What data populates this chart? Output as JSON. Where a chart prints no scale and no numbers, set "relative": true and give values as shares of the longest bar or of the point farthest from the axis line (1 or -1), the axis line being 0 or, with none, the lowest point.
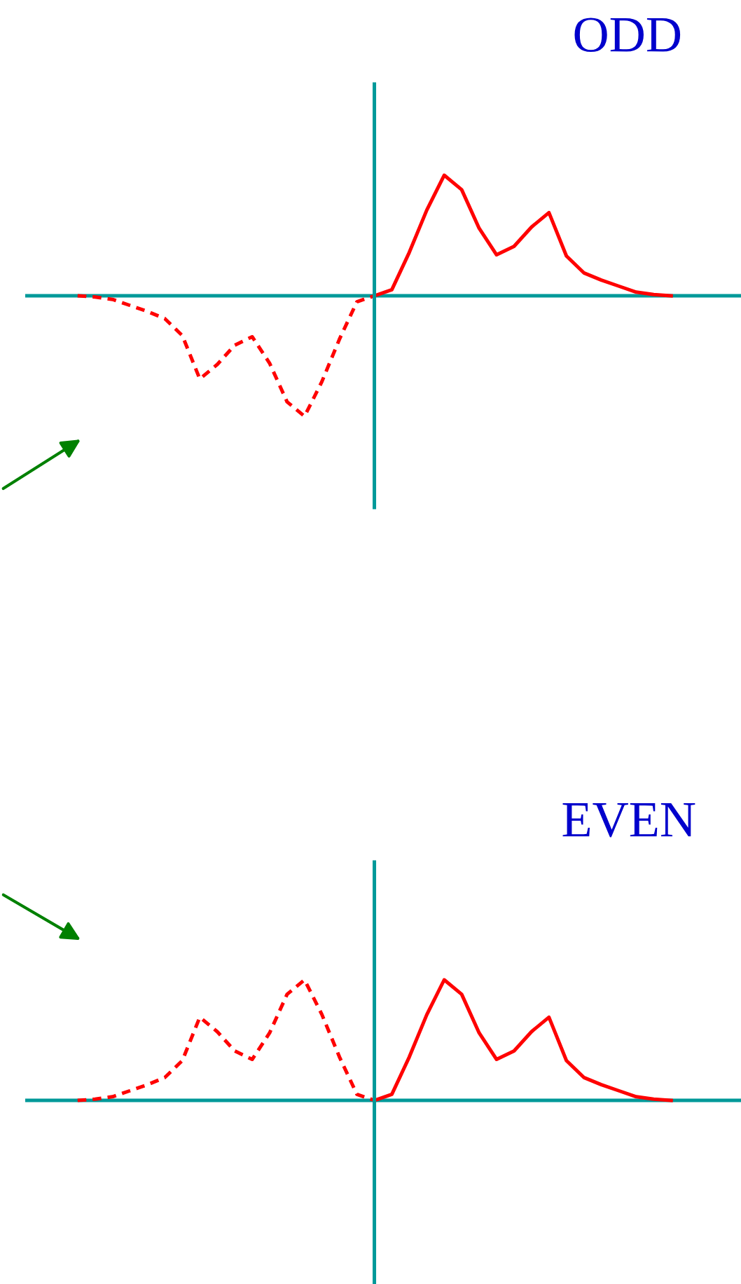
{
  "chart_data": [
    {
      "type": "line",
      "title": "ODD",
      "relative": true,
      "ref_lines": [
        {
          "axis": "y",
          "value": 0,
          "color": "#009999"
        }
      ],
      "categories": [
        null,
        null,
        null,
        null,
        null,
        null,
        null,
        null,
        null,
        null,
        null,
        null,
        null,
        null,
        null,
        null,
        null,
        null,
        null,
        null,
        null,
        null,
        null,
        null,
        null,
        null,
        null,
        null,
        null,
        null,
        null,
        null,
        null,
        null,
        null,
        null,
        null,
        null,
        null,
        null,
        null,
        null
      ],
      "series": [
        {
          "color": "#ff0000",
          "line_style": "dashed",
          "values": [
            null,
            null,
            null,
            0,
            -0.01,
            -0.03,
            -0.08,
            -0.13,
            -0.19,
            -0.33,
            -0.69,
            -0.57,
            -0.41,
            -0.34,
            -0.56,
            -0.88,
            -1,
            -0.71,
            -0.36,
            -0.05,
            0,
            null,
            null,
            null,
            null,
            null,
            null,
            null,
            null,
            null,
            null,
            null,
            null,
            null,
            null,
            null,
            null,
            null,
            null,
            null,
            null,
            null
          ]
        },
        {
          "color": "#ff0000",
          "line_style": "solid",
          "values": [
            null,
            null,
            null,
            null,
            null,
            null,
            null,
            null,
            null,
            null,
            null,
            null,
            null,
            null,
            null,
            null,
            null,
            null,
            null,
            null,
            0,
            0.05,
            0.36,
            0.71,
            1,
            0.88,
            0.56,
            0.34,
            0.41,
            0.57,
            0.69,
            0.33,
            0.19,
            0.13,
            0.08,
            0.03,
            0.01,
            0,
            null,
            null,
            null,
            null
          ]
        }
      ]
    },
    {
      "type": "line",
      "title": "EVEN",
      "relative": true,
      "ref_lines": [
        {
          "axis": "y",
          "value": 0,
          "color": "#009999"
        }
      ],
      "categories": [
        null,
        null,
        null,
        null,
        null,
        null,
        null,
        null,
        null,
        null,
        null,
        null,
        null,
        null,
        null,
        null,
        null,
        null,
        null,
        null,
        null,
        null,
        null,
        null,
        null,
        null,
        null,
        null,
        null,
        null,
        null,
        null,
        null,
        null,
        null,
        null,
        null,
        null,
        null,
        null,
        null,
        null
      ],
      "series": [
        {
          "color": "#ff0000",
          "line_style": "dashed",
          "values": [
            null,
            null,
            null,
            0,
            0.01,
            0.03,
            0.08,
            0.13,
            0.19,
            0.33,
            0.69,
            0.57,
            0.41,
            0.34,
            0.56,
            0.88,
            1,
            0.71,
            0.36,
            0.05,
            0,
            null,
            null,
            null,
            null,
            null,
            null,
            null,
            null,
            null,
            null,
            null,
            null,
            null,
            null,
            null,
            null,
            null,
            null,
            null,
            null,
            null
          ]
        },
        {
          "color": "#ff0000",
          "line_style": "solid",
          "values": [
            null,
            null,
            null,
            null,
            null,
            null,
            null,
            null,
            null,
            null,
            null,
            null,
            null,
            null,
            null,
            null,
            null,
            null,
            null,
            null,
            0,
            0.05,
            0.36,
            0.71,
            1,
            0.88,
            0.56,
            0.34,
            0.41,
            0.57,
            0.69,
            0.33,
            0.19,
            0.13,
            0.08,
            0.03,
            0.01,
            0,
            null,
            null,
            null,
            null
          ]
        }
      ]
    }
  ]
}
